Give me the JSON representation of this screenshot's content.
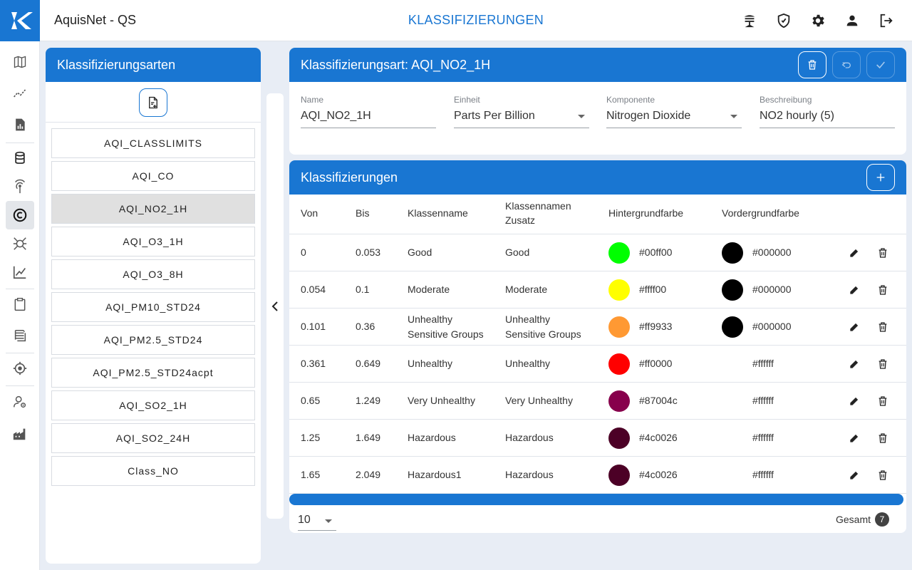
{
  "header": {
    "app_title": "AquisNet - QS",
    "page_title": "KLASSIFIZIERUNGEN",
    "icons": [
      "meteo-station-icon",
      "shield-check-icon",
      "gear-icon",
      "user-icon",
      "logout-icon"
    ]
  },
  "nav": {
    "icons": [
      "map-icon",
      "trend-icon",
      "report-icon",
      "database-icon",
      "antenna-icon",
      "classification-icon",
      "virus-icon",
      "chart-icon",
      "clipboard-icon",
      "layers-icon",
      "target-icon",
      "user-settings-icon",
      "factory-icon"
    ],
    "active_index": 5
  },
  "types_panel": {
    "title": "Klassifizierungsarten",
    "items": [
      "AQI_CLASSLIMITS",
      "AQI_CO",
      "AQI_NO2_1H",
      "AQI_O3_1H",
      "AQI_O3_8H",
      "AQI_PM10_STD24",
      "AQI_PM2.5_STD24",
      "AQI_PM2.5_STD24acpt",
      "AQI_SO2_1H",
      "AQI_SO2_24H",
      "Class_NO"
    ],
    "selected_index": 2
  },
  "detail": {
    "title": "Klassifizierungsart: AQI_NO2_1H",
    "fields": {
      "name": {
        "label": "Name",
        "value": "AQI_NO2_1H"
      },
      "unit": {
        "label": "Einheit",
        "value": "Parts Per Billion"
      },
      "component": {
        "label": "Komponente",
        "value": "Nitrogen Dioxide"
      },
      "description": {
        "label": "Beschreibung",
        "value": "NO2 hourly (5)"
      }
    }
  },
  "classes": {
    "title": "Klassifizierungen",
    "columns": {
      "from": "Von",
      "to": "Bis",
      "class_name": "Klassenname",
      "class_suffix_1": "Klassennamen",
      "class_suffix_2": "Zusatz",
      "background": "Hintergrundfarbe",
      "foreground": "Vordergrundfarbe"
    },
    "rows": [
      {
        "from": "0",
        "to": "0.053",
        "name1": "Good",
        "name2": "",
        "suffix1": "Good",
        "suffix2": "",
        "bg": "#00ff00",
        "fg": "#000000"
      },
      {
        "from": "0.054",
        "to": "0.1",
        "name1": "Moderate",
        "name2": "",
        "suffix1": "Moderate",
        "suffix2": "",
        "bg": "#ffff00",
        "fg": "#000000"
      },
      {
        "from": "0.101",
        "to": "0.36",
        "name1": "Unhealthy",
        "name2": "Sensitive Groups",
        "suffix1": "Unhealthy",
        "suffix2": "Sensitive Groups",
        "bg": "#ff9933",
        "fg": "#000000"
      },
      {
        "from": "0.361",
        "to": "0.649",
        "name1": "Unhealthy",
        "name2": "",
        "suffix1": "Unhealthy",
        "suffix2": "",
        "bg": "#ff0000",
        "fg": "#ffffff"
      },
      {
        "from": "0.65",
        "to": "1.249",
        "name1": "Very Unhealthy",
        "name2": "",
        "suffix1": "Very Unhealthy",
        "suffix2": "",
        "bg": "#87004c",
        "fg": "#ffffff"
      },
      {
        "from": "1.25",
        "to": "1.649",
        "name1": "Hazardous",
        "name2": "",
        "suffix1": "Hazardous",
        "suffix2": "",
        "bg": "#4c0026",
        "fg": "#ffffff"
      },
      {
        "from": "1.65",
        "to": "2.049",
        "name1": "Hazardous1",
        "name2": "",
        "suffix1": "Hazardous",
        "suffix2": "",
        "bg": "#4c0026",
        "fg": "#ffffff"
      }
    ],
    "page_size": "10",
    "total_label": "Gesamt",
    "total_count": "7"
  },
  "colors": {
    "accent": "#1976d2",
    "selected": "#e0e0e0"
  }
}
